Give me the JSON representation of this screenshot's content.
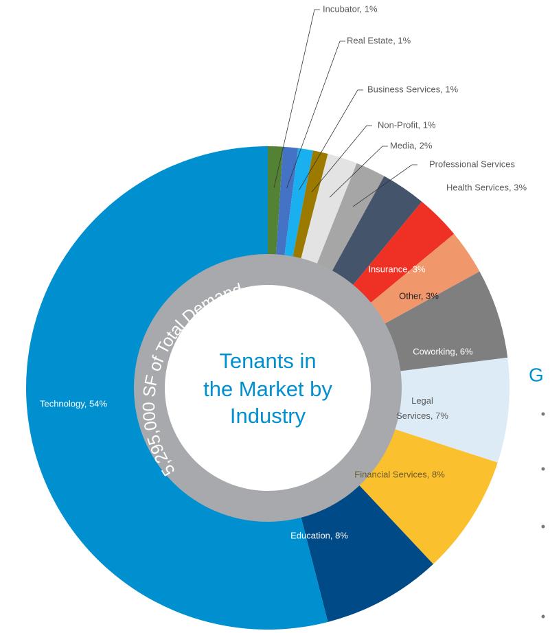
{
  "chart_data": {
    "type": "donut",
    "center_title": [
      "Tenants in",
      "the Market by",
      "Industry"
    ],
    "ring_text": "5,295,000 SF of Total Demand",
    "side_heading": "G",
    "categories": [
      "Incubator, 1%",
      "Real Estate, 1%",
      "Business Services, 1%",
      "Non-Profit, 1%",
      "Media, 2%",
      "Professional Services",
      "Health Services, 3%",
      "Insurance, 3%",
      "Other, 3%",
      "Coworking, 6%",
      "Legal Services, 7%",
      "Financial Services, 8%",
      "Education, 8%",
      "Technology, 54%"
    ],
    "values": [
      1,
      1,
      1,
      1,
      2,
      2,
      3,
      3,
      3,
      6,
      7,
      8,
      8,
      54
    ],
    "colors": [
      "#548235",
      "#4472c4",
      "#1ab0f0",
      "#9c7a00",
      "#e3e3e3",
      "#a6a6a6",
      "#44546a",
      "#ee3124",
      "#f0976c",
      "#7f7f7f",
      "#ddebf7",
      "#fbc02d",
      "#004b87",
      "#0090d0"
    ]
  }
}
